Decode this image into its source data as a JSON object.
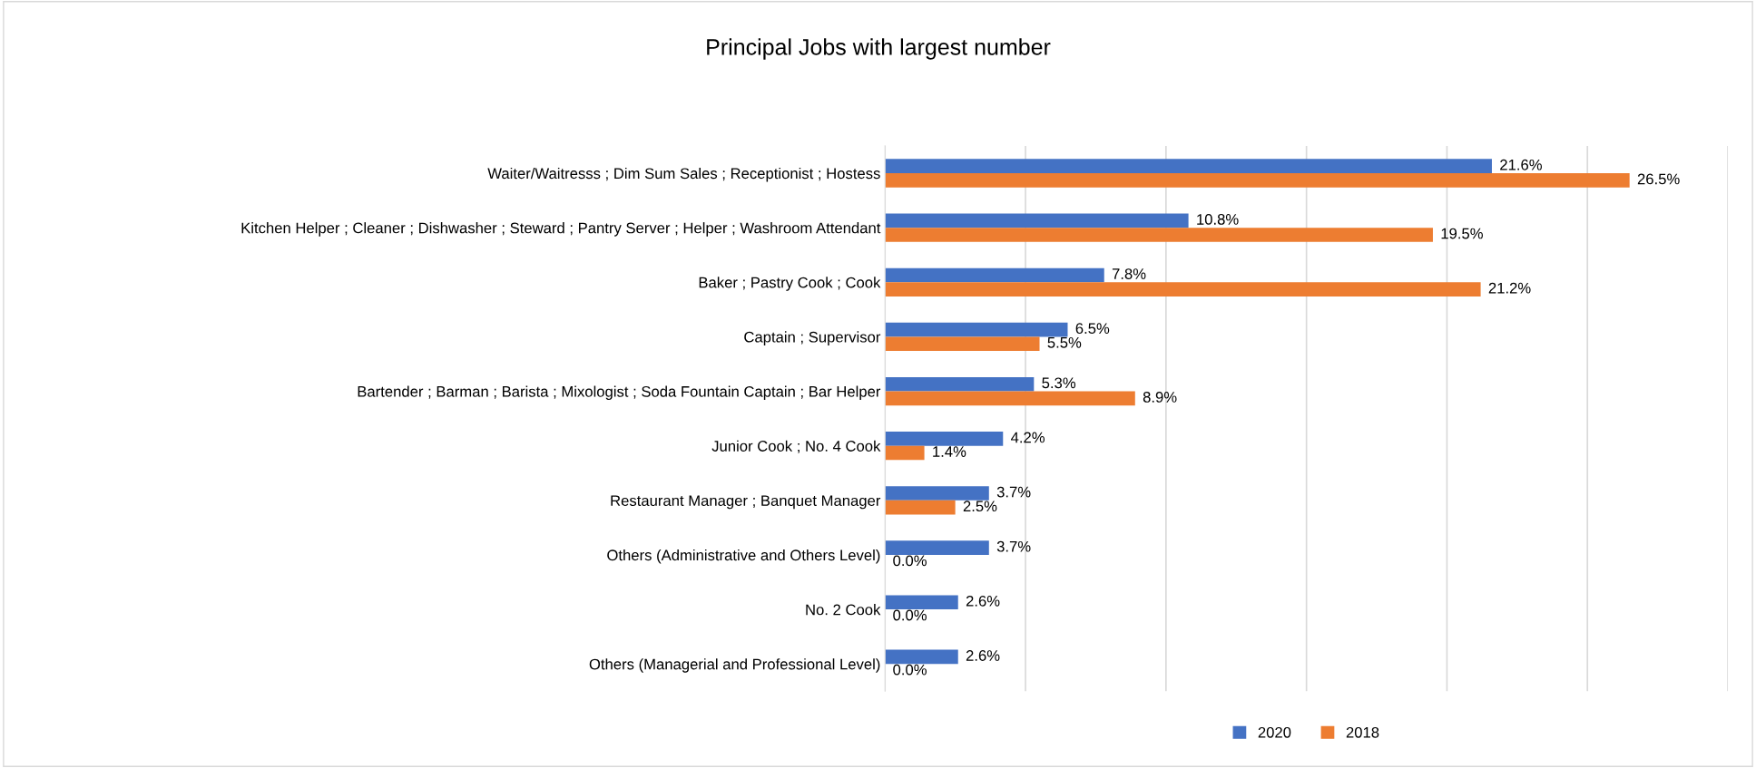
{
  "chart_data": {
    "type": "bar",
    "orientation": "horizontal",
    "title": "Principal Jobs with largest number",
    "categories": [
      "Waiter/Waitresss ; Dim Sum Sales ; Receptionist ; Hostess",
      "Kitchen Helper ; Cleaner ; Dishwasher ; Steward ; Pantry Server ; Helper ; Washroom Attendant",
      "Baker ; Pastry Cook ; Cook",
      "Captain ; Supervisor",
      "Bartender ; Barman ; Barista ; Mixologist ; Soda Fountain Captain ; Bar Helper",
      "Junior Cook ; No. 4 Cook",
      "Restaurant Manager ; Banquet Manager",
      "Others (Administrative and Others Level)",
      "No. 2 Cook",
      "Others (Managerial and Professional Level)"
    ],
    "series": [
      {
        "name": "2020",
        "color": "#4472c4",
        "values": [
          21.6,
          10.8,
          7.8,
          6.5,
          5.3,
          4.2,
          3.7,
          3.7,
          2.6,
          2.6
        ],
        "value_labels": [
          "21.6%",
          "10.8%",
          "7.8%",
          "6.5%",
          "5.3%",
          "4.2%",
          "3.7%",
          "3.7%",
          "2.6%",
          "2.6%"
        ]
      },
      {
        "name": "2018",
        "color": "#ed7d31",
        "values": [
          26.5,
          19.5,
          21.2,
          5.5,
          8.9,
          1.4,
          2.5,
          0.0,
          0.0,
          0.0
        ],
        "value_labels": [
          "26.5%",
          "19.5%",
          "21.2%",
          "5.5%",
          "8.9%",
          "1.4%",
          "2.5%",
          "0.0%",
          "0.0%",
          "0.0%"
        ]
      }
    ],
    "xlim": [
      0,
      30
    ],
    "xticks": [
      {
        "value": 0,
        "label": null
      },
      {
        "value": 5,
        "label": null
      },
      {
        "value": 10,
        "label": null
      },
      {
        "value": 15,
        "label": null
      },
      {
        "value": 20,
        "label": null
      },
      {
        "value": 25,
        "label": null
      },
      {
        "value": 30,
        "label": null
      }
    ],
    "tick_labels": "y",
    "grid": "x",
    "legend": "bottom"
  }
}
